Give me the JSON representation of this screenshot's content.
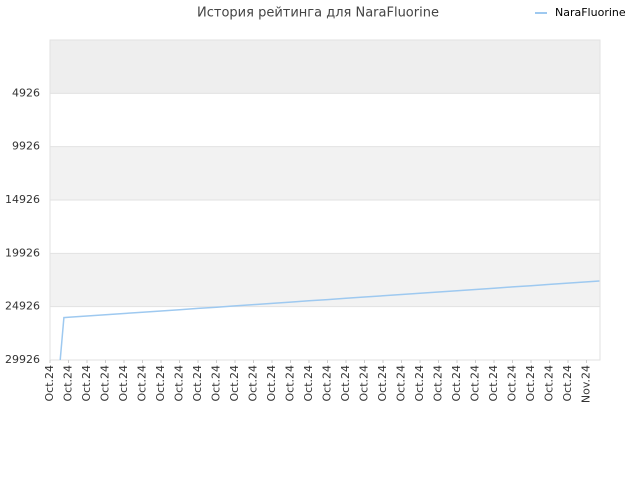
{
  "chart_data": {
    "type": "line",
    "title": "История рейтинга для NaraFluorine",
    "ylim": [
      29926,
      -74
    ],
    "yticks": [
      4926,
      9926,
      14926,
      19926,
      24926,
      29926
    ],
    "xlim": [
      0,
      29.73
    ],
    "xticks": [
      {
        "value": 0,
        "label": "Oct.24"
      },
      {
        "value": 1,
        "label": "Oct.24"
      },
      {
        "value": 2,
        "label": "Oct.24"
      },
      {
        "value": 3,
        "label": "Oct.24"
      },
      {
        "value": 4,
        "label": "Oct.24"
      },
      {
        "value": 5,
        "label": "Oct.24"
      },
      {
        "value": 6,
        "label": "Oct.24"
      },
      {
        "value": 7,
        "label": "Oct.24"
      },
      {
        "value": 8,
        "label": "Oct.24"
      },
      {
        "value": 9,
        "label": "Oct.24"
      },
      {
        "value": 10,
        "label": "Oct.24"
      },
      {
        "value": 11,
        "label": "Oct.24"
      },
      {
        "value": 12,
        "label": "Oct.24"
      },
      {
        "value": 13,
        "label": "Oct.24"
      },
      {
        "value": 14,
        "label": "Oct.24"
      },
      {
        "value": 15,
        "label": "Oct.24"
      },
      {
        "value": 16,
        "label": "Oct.24"
      },
      {
        "value": 17,
        "label": "Oct.24"
      },
      {
        "value": 18,
        "label": "Oct.24"
      },
      {
        "value": 19,
        "label": "Oct.24"
      },
      {
        "value": 20,
        "label": "Oct.24"
      },
      {
        "value": 21,
        "label": "Oct.24"
      },
      {
        "value": 22,
        "label": "Oct.24"
      },
      {
        "value": 23,
        "label": "Oct.24"
      },
      {
        "value": 24,
        "label": "Oct.24"
      },
      {
        "value": 25,
        "label": "Oct.24"
      },
      {
        "value": 26,
        "label": "Oct.24"
      },
      {
        "value": 27,
        "label": "Oct.24"
      },
      {
        "value": 28,
        "label": "Oct.24"
      },
      {
        "value": 29,
        "label": "Nov.24"
      }
    ],
    "series": [
      {
        "name": "NaraFluorine",
        "color": "#9ec9f0",
        "x": [
          0.55,
          0.75,
          1,
          2,
          3,
          4,
          5,
          6,
          7,
          8,
          9,
          10,
          11,
          12,
          13,
          14,
          15,
          16,
          17,
          18,
          19,
          20,
          21,
          22,
          23,
          24,
          25,
          26,
          27,
          28,
          29,
          29.7
        ],
        "values": [
          29926,
          25950,
          25920,
          25802,
          25683,
          25565,
          25446,
          25328,
          25209,
          25091,
          24972,
          24854,
          24735,
          24617,
          24498,
          24380,
          24261,
          24143,
          24024,
          23906,
          23787,
          23669,
          23550,
          23432,
          23313,
          23195,
          23076,
          22958,
          22839,
          22721,
          22602,
          22520
        ]
      }
    ],
    "legend": "top-right"
  }
}
